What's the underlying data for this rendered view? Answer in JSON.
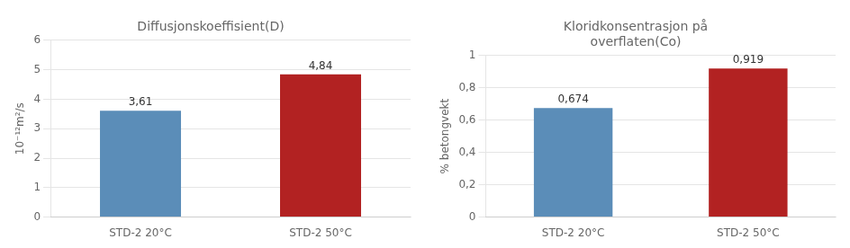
{
  "chart_data": [
    {
      "type": "bar",
      "title": "Diffusjonskoeffisient(D)",
      "categories": [
        "STD-2 20°C",
        "STD-2 50°C"
      ],
      "values": [
        3.61,
        4.84
      ],
      "value_labels": [
        "3,61",
        "4,84"
      ],
      "colors": [
        "#5B8DB8",
        "#B22222"
      ],
      "ylabel": "10⁻¹²m²/s",
      "ylim": [
        0,
        6
      ],
      "yticks": [
        0,
        1,
        2,
        3,
        4,
        5,
        6
      ],
      "grid": true,
      "data_labels": true
    },
    {
      "type": "bar",
      "title": "Kloridkonsentrasjon på\noverflaten(Co)",
      "categories": [
        "STD-2 20°C",
        "STD-2 50°C"
      ],
      "values": [
        0.674,
        0.919
      ],
      "value_labels": [
        "0,674",
        "0,919"
      ],
      "colors": [
        "#5B8DB8",
        "#B22222"
      ],
      "ylabel": "% betongvekt",
      "ylim": [
        0,
        1.0
      ],
      "yticks": [
        0,
        {
          "value": 0.2,
          "label": "0,2"
        },
        {
          "value": 0.4,
          "label": "0,4"
        },
        {
          "value": 0.6,
          "label": "0,6"
        },
        {
          "value": 0.8,
          "label": "0,8"
        },
        1
      ],
      "grid": true,
      "data_labels": true
    }
  ]
}
